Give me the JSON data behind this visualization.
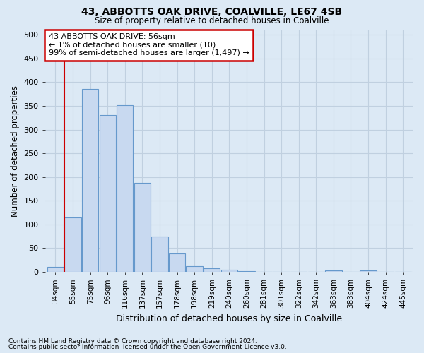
{
  "title1": "43, ABBOTTS OAK DRIVE, COALVILLE, LE67 4SB",
  "title2": "Size of property relative to detached houses in Coalville",
  "xlabel": "Distribution of detached houses by size in Coalville",
  "ylabel": "Number of detached properties",
  "footnote1": "Contains HM Land Registry data © Crown copyright and database right 2024.",
  "footnote2": "Contains public sector information licensed under the Open Government Licence v3.0.",
  "annotation_line1": "43 ABBOTTS OAK DRIVE: 56sqm",
  "annotation_line2": "← 1% of detached houses are smaller (10)",
  "annotation_line3": "99% of semi-detached houses are larger (1,497) →",
  "bin_labels": [
    "34sqm",
    "55sqm",
    "75sqm",
    "96sqm",
    "116sqm",
    "137sqm",
    "157sqm",
    "178sqm",
    "198sqm",
    "219sqm",
    "240sqm",
    "260sqm",
    "281sqm",
    "301sqm",
    "322sqm",
    "342sqm",
    "363sqm",
    "383sqm",
    "404sqm",
    "424sqm",
    "445sqm"
  ],
  "bar_values": [
    10,
    115,
    385,
    330,
    352,
    188,
    75,
    38,
    12,
    7,
    5,
    1,
    0,
    0,
    0,
    0,
    3,
    0,
    3,
    0,
    0
  ],
  "bar_color": "#c8d9f0",
  "bar_edge_color": "#6699cc",
  "highlight_bar_index": 1,
  "vline_color": "#cc0000",
  "annotation_box_edge_color": "#cc0000",
  "annotation_box_face_color": "#ffffff",
  "grid_color": "#c0d0e0",
  "background_color": "#dce9f5",
  "ylim": [
    0,
    510
  ],
  "yticks": [
    0,
    50,
    100,
    150,
    200,
    250,
    300,
    350,
    400,
    450,
    500
  ]
}
